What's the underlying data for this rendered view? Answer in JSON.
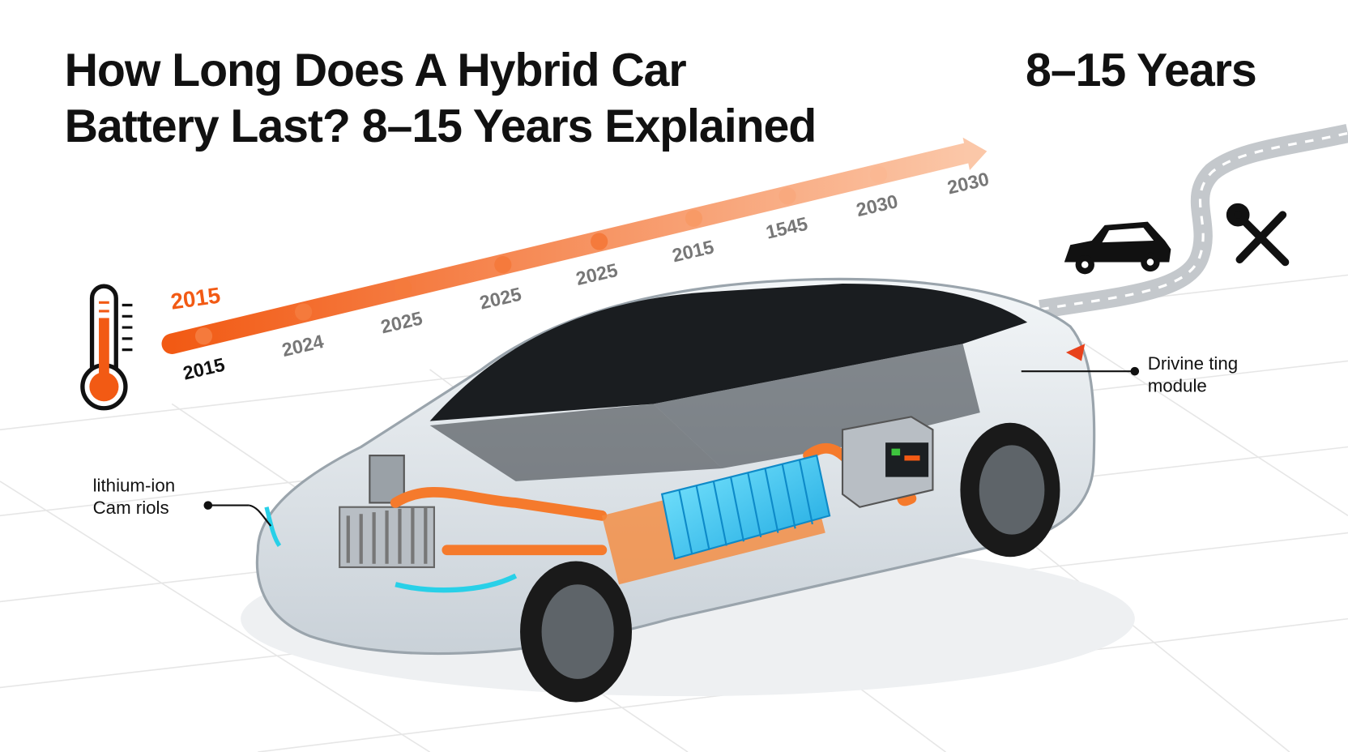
{
  "header": {
    "title_lines": [
      "How Long Does A Hybrid Car",
      "Battery Last? 8–15 Years Explained"
    ],
    "badge": "8–15 Years"
  },
  "timeline": {
    "highlight_label": "2015",
    "labels": [
      "2015",
      "2024",
      "2025",
      "2025",
      "2025",
      "2015",
      "1545",
      "2030",
      "2030"
    ]
  },
  "callouts": {
    "left": [
      "lithium-ion",
      "Cam riols"
    ],
    "right": [
      "Drivine ting",
      "module"
    ]
  }
}
